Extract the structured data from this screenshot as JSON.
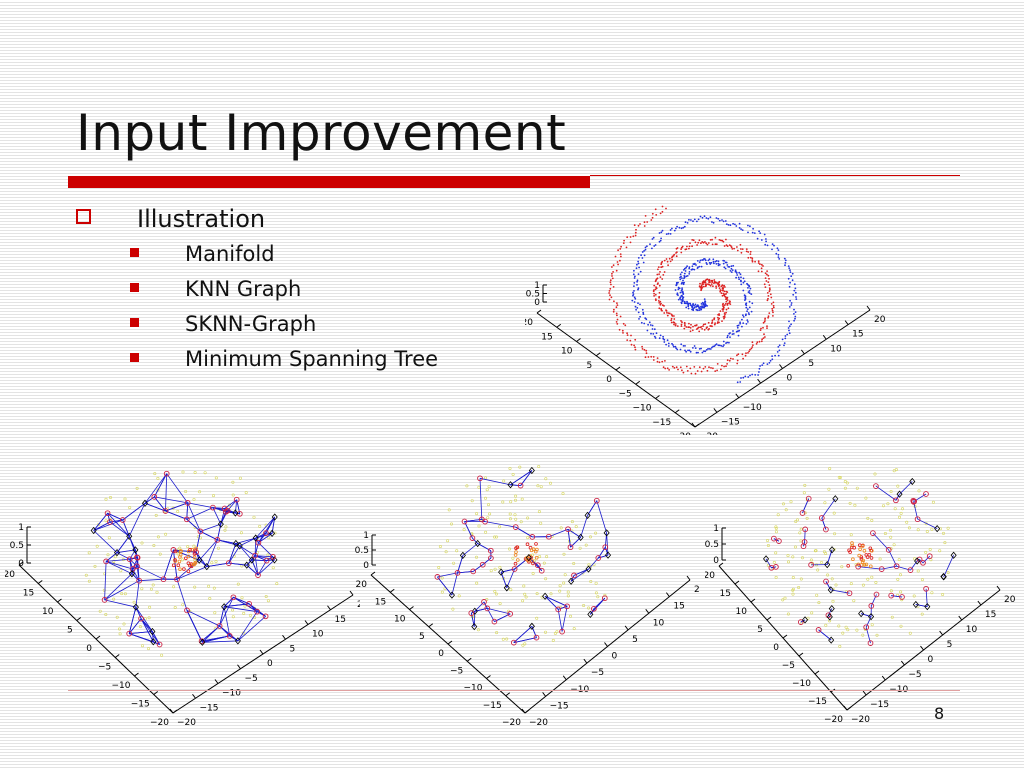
{
  "slide": {
    "title": "Input Improvement",
    "bullet_level1": "Illustration",
    "bullets_level2": [
      "Manifold",
      "KNN Graph",
      "SKNN-Graph",
      "Minimum Spanning Tree"
    ],
    "page_number": "8"
  },
  "figures": [
    {
      "name": "manifold-spiral-plot",
      "z_ticks": [
        "1",
        "0.5",
        "0"
      ],
      "left_ticks": [
        "20",
        "15",
        "10",
        "5",
        "0",
        "−5",
        "−10",
        "−15",
        "−20"
      ],
      "right_ticks": [
        "−20",
        "−15",
        "−10",
        "−5",
        "0",
        "5",
        "10",
        "15",
        "20"
      ]
    },
    {
      "name": "knn-graph-plot",
      "z_ticks": [
        "1",
        "0.5",
        "0"
      ],
      "left_ticks": [
        "20",
        "15",
        "10",
        "5",
        "0",
        "−5",
        "−10",
        "−15",
        "−20"
      ],
      "right_ticks": [
        "−20",
        "−15",
        "−10",
        "−5",
        "0",
        "5",
        "10",
        "15",
        "20"
      ]
    },
    {
      "name": "sknn-graph-plot",
      "z_ticks": [
        "1",
        "0.5",
        "0"
      ],
      "left_ticks": [
        "20",
        "15",
        "10",
        "5",
        "0",
        "−5",
        "−10",
        "−15",
        "−20"
      ],
      "right_ticks": [
        "−20",
        "−15",
        "−10",
        "−5",
        "0",
        "5",
        "10",
        "15",
        "20"
      ]
    },
    {
      "name": "minimum-spanning-tree-plot",
      "z_ticks": [
        "1",
        "0.5",
        "0"
      ],
      "left_ticks": [
        "20",
        "15",
        "10",
        "5",
        "0",
        "−5",
        "−10",
        "−15",
        "−20"
      ],
      "right_ticks": [
        "−20",
        "−15",
        "−10",
        "−5",
        "0",
        "5",
        "10",
        "15",
        "20"
      ]
    }
  ],
  "colors": {
    "accent": "#cc0000",
    "blue_points": "#2233dd",
    "red_points": "#dd2222",
    "edge_blue": "#1a1acc",
    "yellow_points": "#d8d860"
  }
}
